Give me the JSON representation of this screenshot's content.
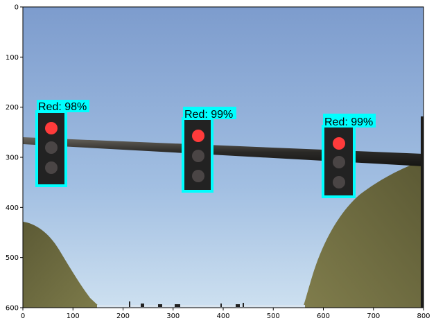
{
  "plot": {
    "x_ticks": [
      "0",
      "100",
      "200",
      "300",
      "400",
      "500",
      "600",
      "700",
      "800"
    ],
    "y_ticks": [
      "0",
      "100",
      "200",
      "300",
      "400",
      "500",
      "600"
    ],
    "xlim": [
      0,
      800
    ],
    "ylim": [
      600,
      0
    ],
    "y_axis_inverted": true,
    "image_content": "traffic lights on a pole over a road with hills, sky background"
  },
  "detections": [
    {
      "label": "Red: 98%",
      "class": "Red",
      "score": 0.98,
      "box_color": "#00ffff",
      "light_lit": "top"
    },
    {
      "label": "Red: 99%",
      "class": "Red",
      "score": 0.99,
      "box_color": "#00ffff",
      "light_lit": "top"
    },
    {
      "label": "Red: 99%",
      "class": "Red",
      "score": 0.99,
      "box_color": "#00ffff",
      "light_lit": "top"
    }
  ],
  "colors": {
    "box": "#00ffff",
    "red_light": "#ff3b3b",
    "off_light": "#4a4545",
    "sky_top": "#7f9fcf",
    "sky_bottom": "#c7dbee",
    "hill": "#6b6a3e"
  }
}
